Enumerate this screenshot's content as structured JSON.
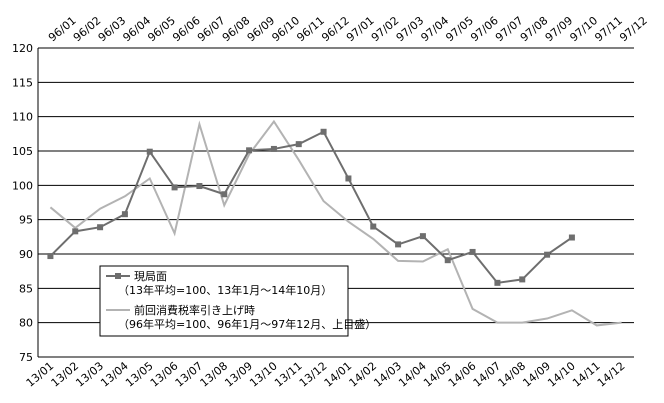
{
  "chart_data": {
    "type": "line",
    "categories": [
      "13/01",
      "13/02",
      "13/03",
      "13/04",
      "13/05",
      "13/06",
      "13/07",
      "13/08",
      "13/09",
      "13/10",
      "13/11",
      "13/12",
      "14/01",
      "14/02",
      "14/03",
      "14/04",
      "14/05",
      "14/06",
      "14/07",
      "14/08",
      "14/09",
      "14/10",
      "14/11",
      "14/12"
    ],
    "top_categories": [
      "96/01",
      "96/02",
      "96/03",
      "96/04",
      "96/05",
      "96/06",
      "96/07",
      "96/08",
      "96/09",
      "96/10",
      "96/11",
      "96/12",
      "97/01",
      "97/02",
      "97/03",
      "97/04",
      "97/05",
      "97/06",
      "97/07",
      "97/08",
      "97/09",
      "97/10",
      "97/11",
      "97/12"
    ],
    "series": [
      {
        "name": "現局面",
        "description": "（13年平均=100、13年1月～14年10月）",
        "color": "#6e6e6e",
        "marker": "square",
        "values": [
          89.7,
          93.3,
          93.9,
          95.8,
          104.9,
          99.7,
          99.9,
          98.7,
          105.1,
          105.3,
          106.0,
          107.8,
          101.0,
          94.0,
          91.4,
          92.6,
          89.1,
          90.3,
          85.8,
          86.3,
          89.9,
          92.4,
          null,
          null
        ]
      },
      {
        "name": "前回消費税率引き上げ時",
        "description": "（96年平均=100、96年1月～97年12月、上目盛）",
        "color": "#b3b3b3",
        "marker": "none",
        "values": [
          96.8,
          93.8,
          96.6,
          98.4,
          101.0,
          93.0,
          108.9,
          97.1,
          104.5,
          109.3,
          103.7,
          97.7,
          94.7,
          92.2,
          89.0,
          88.9,
          90.7,
          82.0,
          80.0,
          80.0,
          80.6,
          81.8,
          79.6,
          80.0
        ]
      }
    ],
    "ylim": [
      75,
      120
    ],
    "yticks": [
      75,
      80,
      85,
      90,
      95,
      100,
      105,
      110,
      115,
      120
    ],
    "grid": true
  }
}
